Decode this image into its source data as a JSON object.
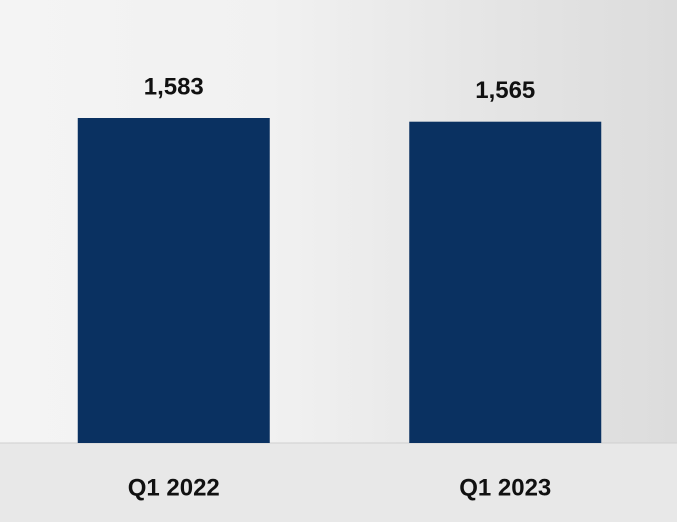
{
  "chart_data": {
    "type": "bar",
    "categories": [
      "Q1 2022",
      "Q1 2023"
    ],
    "values": [
      1583,
      1565
    ],
    "value_labels": [
      "1,583",
      "1,565"
    ],
    "color": "#0a3161"
  }
}
